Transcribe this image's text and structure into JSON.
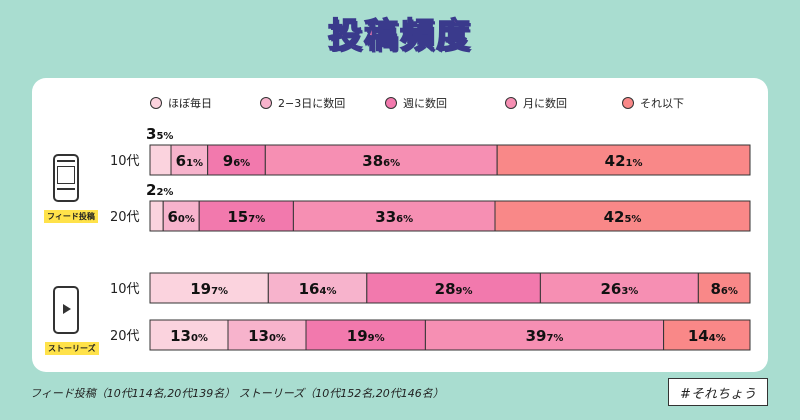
{
  "title": "投稿頻度",
  "footnote": "フィード投稿（10代114名,20代139名）  ストーリーズ（10代152名,20代146名）",
  "hashtag": "#それちょう",
  "groups": [
    {
      "label": "フィード投稿",
      "icon": "feed-phone-icon"
    },
    {
      "label": "ストーリーズ",
      "icon": "stories-phone-icon"
    }
  ],
  "chart_data": {
    "type": "bar",
    "stacked": true,
    "orientation": "horizontal",
    "legend_position": "top",
    "legend": [
      "ほぼ毎日",
      "2−3日に数回",
      "週に数回",
      "月に数回",
      "それ以下"
    ],
    "colors": [
      "#fbd3de",
      "#f7b3cc",
      "#f279ad",
      "#f68fb3",
      "#f98888"
    ],
    "rows": [
      {
        "group": "フィード投稿",
        "label": "10代",
        "values": [
          3.5,
          6.1,
          9.6,
          38.6,
          42.1
        ]
      },
      {
        "group": "フィード投稿",
        "label": "20代",
        "values": [
          2.2,
          6.0,
          15.7,
          33.6,
          42.5
        ]
      },
      {
        "group": "ストーリーズ",
        "label": "10代",
        "values": [
          19.7,
          16.4,
          28.9,
          26.3,
          8.6
        ]
      },
      {
        "group": "ストーリーズ",
        "label": "20代",
        "values": [
          13.0,
          13.0,
          19.9,
          39.7,
          14.4
        ]
      }
    ]
  }
}
